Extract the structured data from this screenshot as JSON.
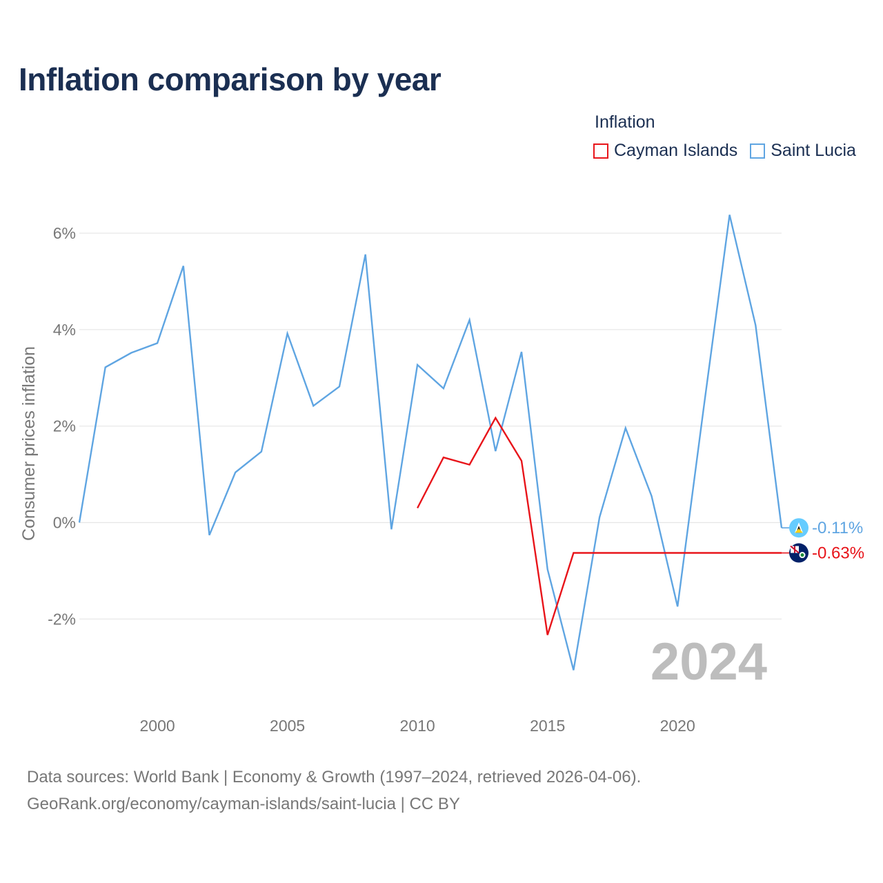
{
  "title": "Inflation comparison by year",
  "legend_title": "Inflation",
  "source_line1": "Data sources: World Bank | Economy & Growth (1997–2024, retrieved 2026-04-06).",
  "source_line2": "GeoRank.org/economy/cayman-islands/saint-lucia | CC BY",
  "chart_data": {
    "type": "line",
    "title": "Inflation comparison by year",
    "xlabel": "",
    "ylabel": "Consumer prices inflation",
    "xlim": [
      1997,
      2024
    ],
    "ylim": [
      -3.5,
      7
    ],
    "x_ticks": [
      2000,
      2005,
      2010,
      2015,
      2020
    ],
    "y_ticks": [
      6,
      4,
      2,
      0,
      -2
    ],
    "y_tick_labels": [
      "6%",
      "4%",
      "2%",
      "0%",
      "-2%"
    ],
    "grid": true,
    "legend_position": "top-right",
    "year_watermark": "2024",
    "series": [
      {
        "name": "Cayman Islands",
        "color": "#e8141a",
        "end_label": "-0.63%",
        "flag_icon": "cayman-islands-flag-icon",
        "x": [
          2010,
          2011,
          2012,
          2013,
          2014,
          2015,
          2016,
          2017,
          2018,
          2019,
          2020,
          2021,
          2022,
          2023,
          2024
        ],
        "values": [
          0.3,
          1.35,
          1.2,
          2.17,
          1.28,
          -2.33,
          -0.63,
          -0.63,
          -0.63,
          -0.63,
          -0.63,
          -0.63,
          -0.63,
          -0.63,
          -0.63
        ]
      },
      {
        "name": "Saint Lucia",
        "color": "#5fa5e2",
        "end_label": "-0.11%",
        "flag_icon": "saint-lucia-flag-icon",
        "x": [
          1997,
          1998,
          1999,
          2000,
          2001,
          2002,
          2003,
          2004,
          2005,
          2006,
          2007,
          2008,
          2009,
          2010,
          2011,
          2012,
          2013,
          2014,
          2015,
          2016,
          2017,
          2018,
          2019,
          2020,
          2021,
          2022,
          2023,
          2024
        ],
        "values": [
          0.0,
          3.22,
          3.52,
          3.72,
          5.32,
          -0.26,
          1.04,
          1.47,
          3.92,
          2.42,
          2.82,
          5.56,
          -0.14,
          3.27,
          2.78,
          4.2,
          1.48,
          3.54,
          -0.97,
          -3.06,
          0.11,
          1.96,
          0.55,
          -1.74,
          2.36,
          6.38,
          4.09,
          -0.11
        ]
      }
    ]
  }
}
